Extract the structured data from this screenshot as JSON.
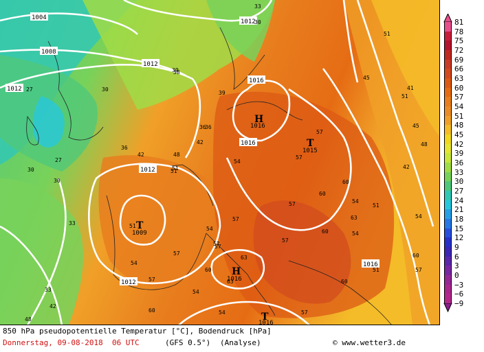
{
  "title_line": "850 hPa pseudopotentielle Temperatur [°C], Bodendruck [hPa]",
  "date_line": {
    "date": "Donnerstag, 09-08-2018  06 UTC",
    "model": "(GFS 0.5°)",
    "type": "(Analyse)",
    "copyright": "© www.wetter3.de"
  },
  "colorbar": {
    "levels": [
      "81",
      "78",
      "75",
      "72",
      "69",
      "66",
      "63",
      "60",
      "57",
      "54",
      "51",
      "48",
      "45",
      "42",
      "39",
      "36",
      "33",
      "30",
      "27",
      "24",
      "21",
      "18",
      "15",
      "12",
      "9",
      "6",
      "3",
      "0",
      "−3",
      "−6",
      "−9"
    ],
    "colors": [
      "#e8508c",
      "#c81e3c",
      "#b4142d",
      "#c02a20",
      "#c83c28",
      "#d24a1e",
      "#dc5a14",
      "#e66c14",
      "#e87e1e",
      "#ea8c28",
      "#f0a028",
      "#f4bc28",
      "#f0d81e",
      "#e6e632",
      "#c8e63c",
      "#a0dc46",
      "#78d25a",
      "#50c87a",
      "#32c8b4",
      "#28c8dc",
      "#28a0e6",
      "#2878e6",
      "#2850dc",
      "#2832c8",
      "#3c28b4",
      "#5a28aa",
      "#7828a0",
      "#962896",
      "#aa288c",
      "#b4288c",
      "#a0288c"
    ],
    "top_arrow_color": "#e8508c",
    "bottom_arrow_color": "#8c1e8c"
  },
  "isobar_labels": [
    {
      "text": "1004"
    },
    {
      "text": "1008"
    },
    {
      "text": "1012"
    },
    {
      "text": "1012"
    },
    {
      "text": "1012"
    },
    {
      "text": "1016"
    },
    {
      "text": "1016"
    },
    {
      "text": "1016"
    },
    {
      "text": "1012"
    },
    {
      "text": "1012"
    }
  ],
  "pressure_centers": [
    {
      "letter": "H",
      "value": "1016"
    },
    {
      "letter": "T",
      "value": "1015"
    },
    {
      "letter": "T",
      "value": "1009"
    },
    {
      "letter": "H",
      "value": "1016"
    },
    {
      "letter": "T",
      "value": "1016"
    }
  ],
  "temp_labels": [
    "27",
    "30",
    "27",
    "30",
    "33",
    "38",
    "39",
    "36",
    "42",
    "45",
    "48",
    "51",
    "54",
    "57",
    "57",
    "60",
    "60",
    "57",
    "54",
    "51",
    "54",
    "57",
    "60",
    "63",
    "60",
    "57",
    "54",
    "57",
    "51",
    "45",
    "48",
    "51",
    "51",
    "42",
    "41",
    "57",
    "60",
    "54",
    "57",
    "51",
    "54",
    "57",
    "60",
    "63",
    "33",
    "30",
    "36",
    "36",
    "42",
    "51",
    "54",
    "57",
    "63",
    "60",
    "57",
    "54",
    "33",
    "30",
    "48",
    "42",
    "39"
  ]
}
